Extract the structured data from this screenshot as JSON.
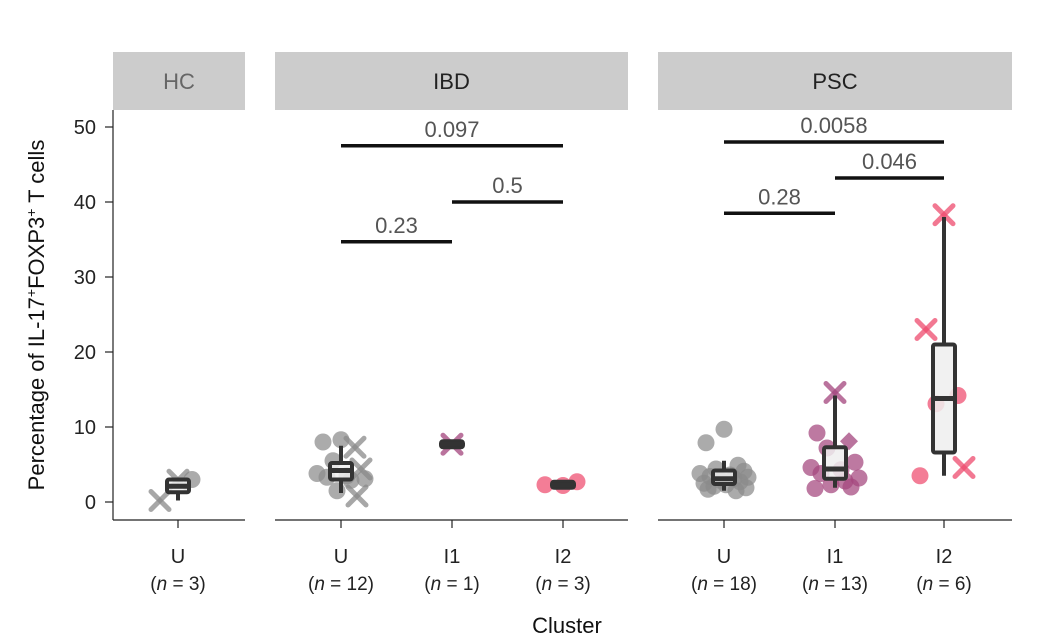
{
  "chart_data": {
    "type": "box",
    "ylabel": {
      "prefix": "Percentage of IL-17",
      "sup1": "+",
      "mid": "FOXP3",
      "sup2": "+",
      "suffix": " T cells"
    },
    "xlabel": "Cluster",
    "ylim": [
      0,
      52
    ],
    "yticks": [
      0,
      10,
      20,
      30,
      40,
      50
    ],
    "colors": {
      "U": "#8a8a8a",
      "I1": "#a3457d",
      "I2": "#ee4b6e",
      "box": "#333333",
      "strip": "#cccccc"
    },
    "panels": [
      {
        "name": "HC",
        "groups": [
          {
            "cluster": "U",
            "n_text": "n",
            "n_value": "3",
            "box": {
              "q1": 1.3,
              "median": 2.1,
              "q3": 3.0,
              "min": 0.2,
              "max": 3.0
            },
            "points": [
              {
                "y": 2.9,
                "m": "x"
              },
              {
                "y": 0.2,
                "m": "x"
              },
              {
                "y": 3.0,
                "m": "o"
              }
            ]
          }
        ],
        "comparisons": []
      },
      {
        "name": "IBD",
        "groups": [
          {
            "cluster": "U",
            "n_text": "n",
            "n_value": "12",
            "box": {
              "q1": 3.0,
              "median": 4.2,
              "q3": 5.2,
              "min": 1.2,
              "max": 7.5
            },
            "points": [
              {
                "y": 8.3,
                "m": "o"
              },
              {
                "y": 8.0,
                "m": "o"
              },
              {
                "y": 7.3,
                "m": "x"
              },
              {
                "y": 5.5,
                "m": "o"
              },
              {
                "y": 4.4,
                "m": "x"
              },
              {
                "y": 3.8,
                "m": "o"
              },
              {
                "y": 3.5,
                "m": "o"
              },
              {
                "y": 3.3,
                "m": "o"
              },
              {
                "y": 3.1,
                "m": "o"
              },
              {
                "y": 2.9,
                "m": "o"
              },
              {
                "y": 1.5,
                "m": "o"
              },
              {
                "y": 0.8,
                "m": "x"
              }
            ]
          },
          {
            "cluster": "I1",
            "n_text": "n",
            "n_value": "1",
            "box": {
              "q1": 7.7,
              "median": 7.7,
              "q3": 7.7,
              "min": 7.7,
              "max": 7.7
            },
            "points": [
              {
                "y": 7.7,
                "m": "x"
              }
            ]
          },
          {
            "cluster": "I2",
            "n_text": "n",
            "n_value": "3",
            "box": {
              "q1": 2.2,
              "median": 2.3,
              "q3": 2.5,
              "min": 2.2,
              "max": 2.6
            },
            "points": [
              {
                "y": 2.2,
                "m": "o"
              },
              {
                "y": 2.3,
                "m": "o"
              },
              {
                "y": 2.7,
                "m": "o"
              }
            ]
          }
        ],
        "comparisons": [
          {
            "from": 0,
            "to": 1,
            "y": 34.7,
            "p": "0.23"
          },
          {
            "from": 1,
            "to": 2,
            "y": 40.0,
            "p": "0.5"
          },
          {
            "from": 0,
            "to": 2,
            "y": 47.5,
            "p": "0.097"
          }
        ]
      },
      {
        "name": "PSC",
        "groups": [
          {
            "cluster": "U",
            "n_text": "n",
            "n_value": "18",
            "box": {
              "q1": 2.4,
              "median": 3.1,
              "q3": 4.2,
              "min": 1.5,
              "max": 5.5
            },
            "points": [
              {
                "y": 9.7,
                "m": "o"
              },
              {
                "y": 7.9,
                "m": "o"
              },
              {
                "y": 4.9,
                "m": "o"
              },
              {
                "y": 4.4,
                "m": "o"
              },
              {
                "y": 4.1,
                "m": "o"
              },
              {
                "y": 3.8,
                "m": "o"
              },
              {
                "y": 3.6,
                "m": "o"
              },
              {
                "y": 3.4,
                "m": "o"
              },
              {
                "y": 3.3,
                "m": "o"
              },
              {
                "y": 3.1,
                "m": "o"
              },
              {
                "y": 2.9,
                "m": "o"
              },
              {
                "y": 2.7,
                "m": "o"
              },
              {
                "y": 2.5,
                "m": "o"
              },
              {
                "y": 2.3,
                "m": "o"
              },
              {
                "y": 2.1,
                "m": "o"
              },
              {
                "y": 1.9,
                "m": "o"
              },
              {
                "y": 1.7,
                "m": "o"
              },
              {
                "y": 1.5,
                "m": "o"
              }
            ]
          },
          {
            "cluster": "I1",
            "n_text": "n",
            "n_value": "13",
            "box": {
              "q1": 3.1,
              "median": 4.4,
              "q3": 7.3,
              "min": 1.9,
              "max": 14.2
            },
            "points": [
              {
                "y": 14.6,
                "m": "x"
              },
              {
                "y": 9.2,
                "m": "o"
              },
              {
                "y": 8.1,
                "m": "d"
              },
              {
                "y": 7.2,
                "m": "o"
              },
              {
                "y": 5.3,
                "m": "o"
              },
              {
                "y": 4.6,
                "m": "o"
              },
              {
                "y": 4.3,
                "m": "o"
              },
              {
                "y": 3.8,
                "m": "o"
              },
              {
                "y": 3.2,
                "m": "o"
              },
              {
                "y": 2.8,
                "m": "o"
              },
              {
                "y": 2.3,
                "m": "o"
              },
              {
                "y": 2.0,
                "m": "o"
              },
              {
                "y": 1.8,
                "m": "o"
              }
            ]
          },
          {
            "cluster": "I2",
            "n_text": "n",
            "n_value": "6",
            "box": {
              "q1": 6.6,
              "median": 13.8,
              "q3": 21.0,
              "min": 3.5,
              "max": 38.0
            },
            "points": [
              {
                "y": 38.3,
                "m": "x"
              },
              {
                "y": 23.0,
                "m": "x"
              },
              {
                "y": 14.2,
                "m": "o"
              },
              {
                "y": 13.1,
                "m": "o"
              },
              {
                "y": 4.6,
                "m": "x"
              },
              {
                "y": 3.5,
                "m": "o"
              }
            ]
          }
        ],
        "comparisons": [
          {
            "from": 0,
            "to": 1,
            "y": 38.5,
            "p": "0.28"
          },
          {
            "from": 1,
            "to": 2,
            "y": 43.2,
            "p": "0.046"
          },
          {
            "from": 0,
            "to": 2,
            "y": 48.0,
            "p": "0.0058"
          }
        ]
      }
    ]
  }
}
